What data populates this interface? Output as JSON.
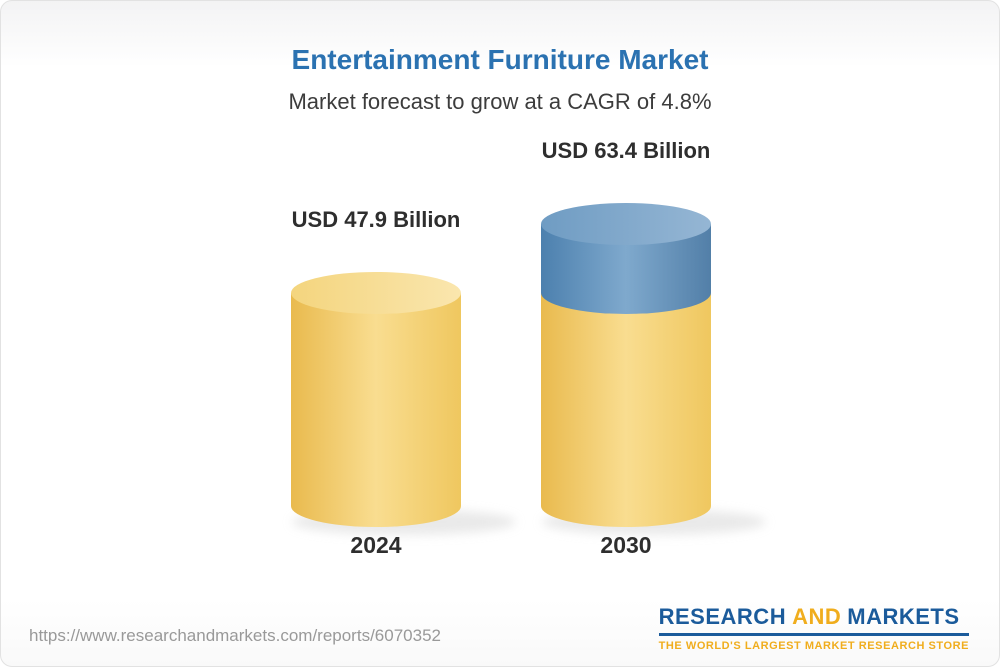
{
  "title": "Entertainment Furniture Market",
  "subtitle": "Market forecast to grow at a CAGR of 4.8%",
  "chart_data": {
    "type": "bar",
    "style": "3d-cylinder",
    "title": "Entertainment Furniture Market",
    "subtitle": "Market forecast to grow at a CAGR of 4.8%",
    "cagr_percent": 4.8,
    "unit": "USD Billion",
    "categories": [
      "2024",
      "2030"
    ],
    "values": [
      47.9,
      63.4
    ],
    "value_labels": [
      "USD 47.9 Billion",
      "USD 63.4 Billion"
    ],
    "stack_note": "2030 cylinder: yellow base up to the 2024 level (47.9), blue top segment up to 63.4",
    "colors": {
      "yellow_body": [
        "#e9ba4e",
        "#f9dd90",
        "#efc75f"
      ],
      "yellow_top": [
        "#f4d57e",
        "#fae6ae"
      ],
      "blue_body": [
        "#4c80ae",
        "#7fa9cd",
        "#527fa8"
      ],
      "blue_top": [
        "#6f9cc3",
        "#95b6d4"
      ],
      "shadow": "#d8d8d8"
    }
  },
  "footer": {
    "url": "https://www.researchandmarkets.com/reports/6070352",
    "logo": {
      "research": "RESEARCH",
      "and": "AND",
      "markets": "MARKETS",
      "tagline": "THE WORLD'S LARGEST MARKET RESEARCH STORE"
    }
  },
  "ui_colors": {
    "title_blue": "#2b72b1",
    "subtitle_gray": "#3c3c3c",
    "label_dark": "#2e2e2e",
    "url_gray": "#999999",
    "logo_blue": "#1b5b9b",
    "logo_gold": "#f0ad1d"
  }
}
